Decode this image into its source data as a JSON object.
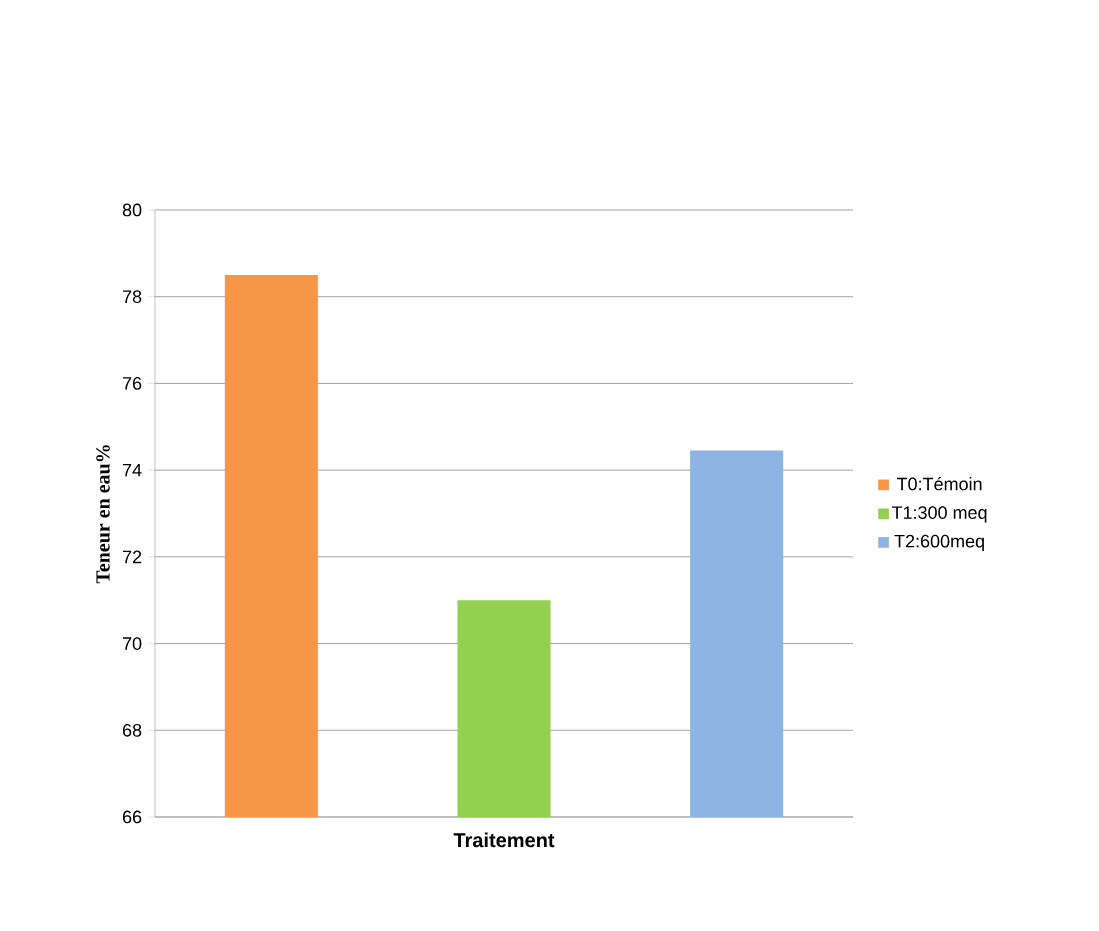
{
  "chart_data": {
    "type": "bar",
    "categories": [
      null
    ],
    "series": [
      {
        "name": "T0:Témoin",
        "color": "#f79646",
        "values": [
          78.5
        ]
      },
      {
        "name": "T1:300 meq",
        "color": "#92d050",
        "values": [
          71.0
        ]
      },
      {
        "name": "T2:600meq",
        "color": "#8db3e2",
        "values": [
          74.45
        ]
      }
    ],
    "xlabel": "Traitement",
    "ylabel": "Teneur en eau%",
    "ylim": [
      66,
      80
    ],
    "yticks": [
      66,
      68,
      70,
      72,
      74,
      76,
      78,
      80
    ],
    "grid": "y",
    "legend": "right"
  }
}
